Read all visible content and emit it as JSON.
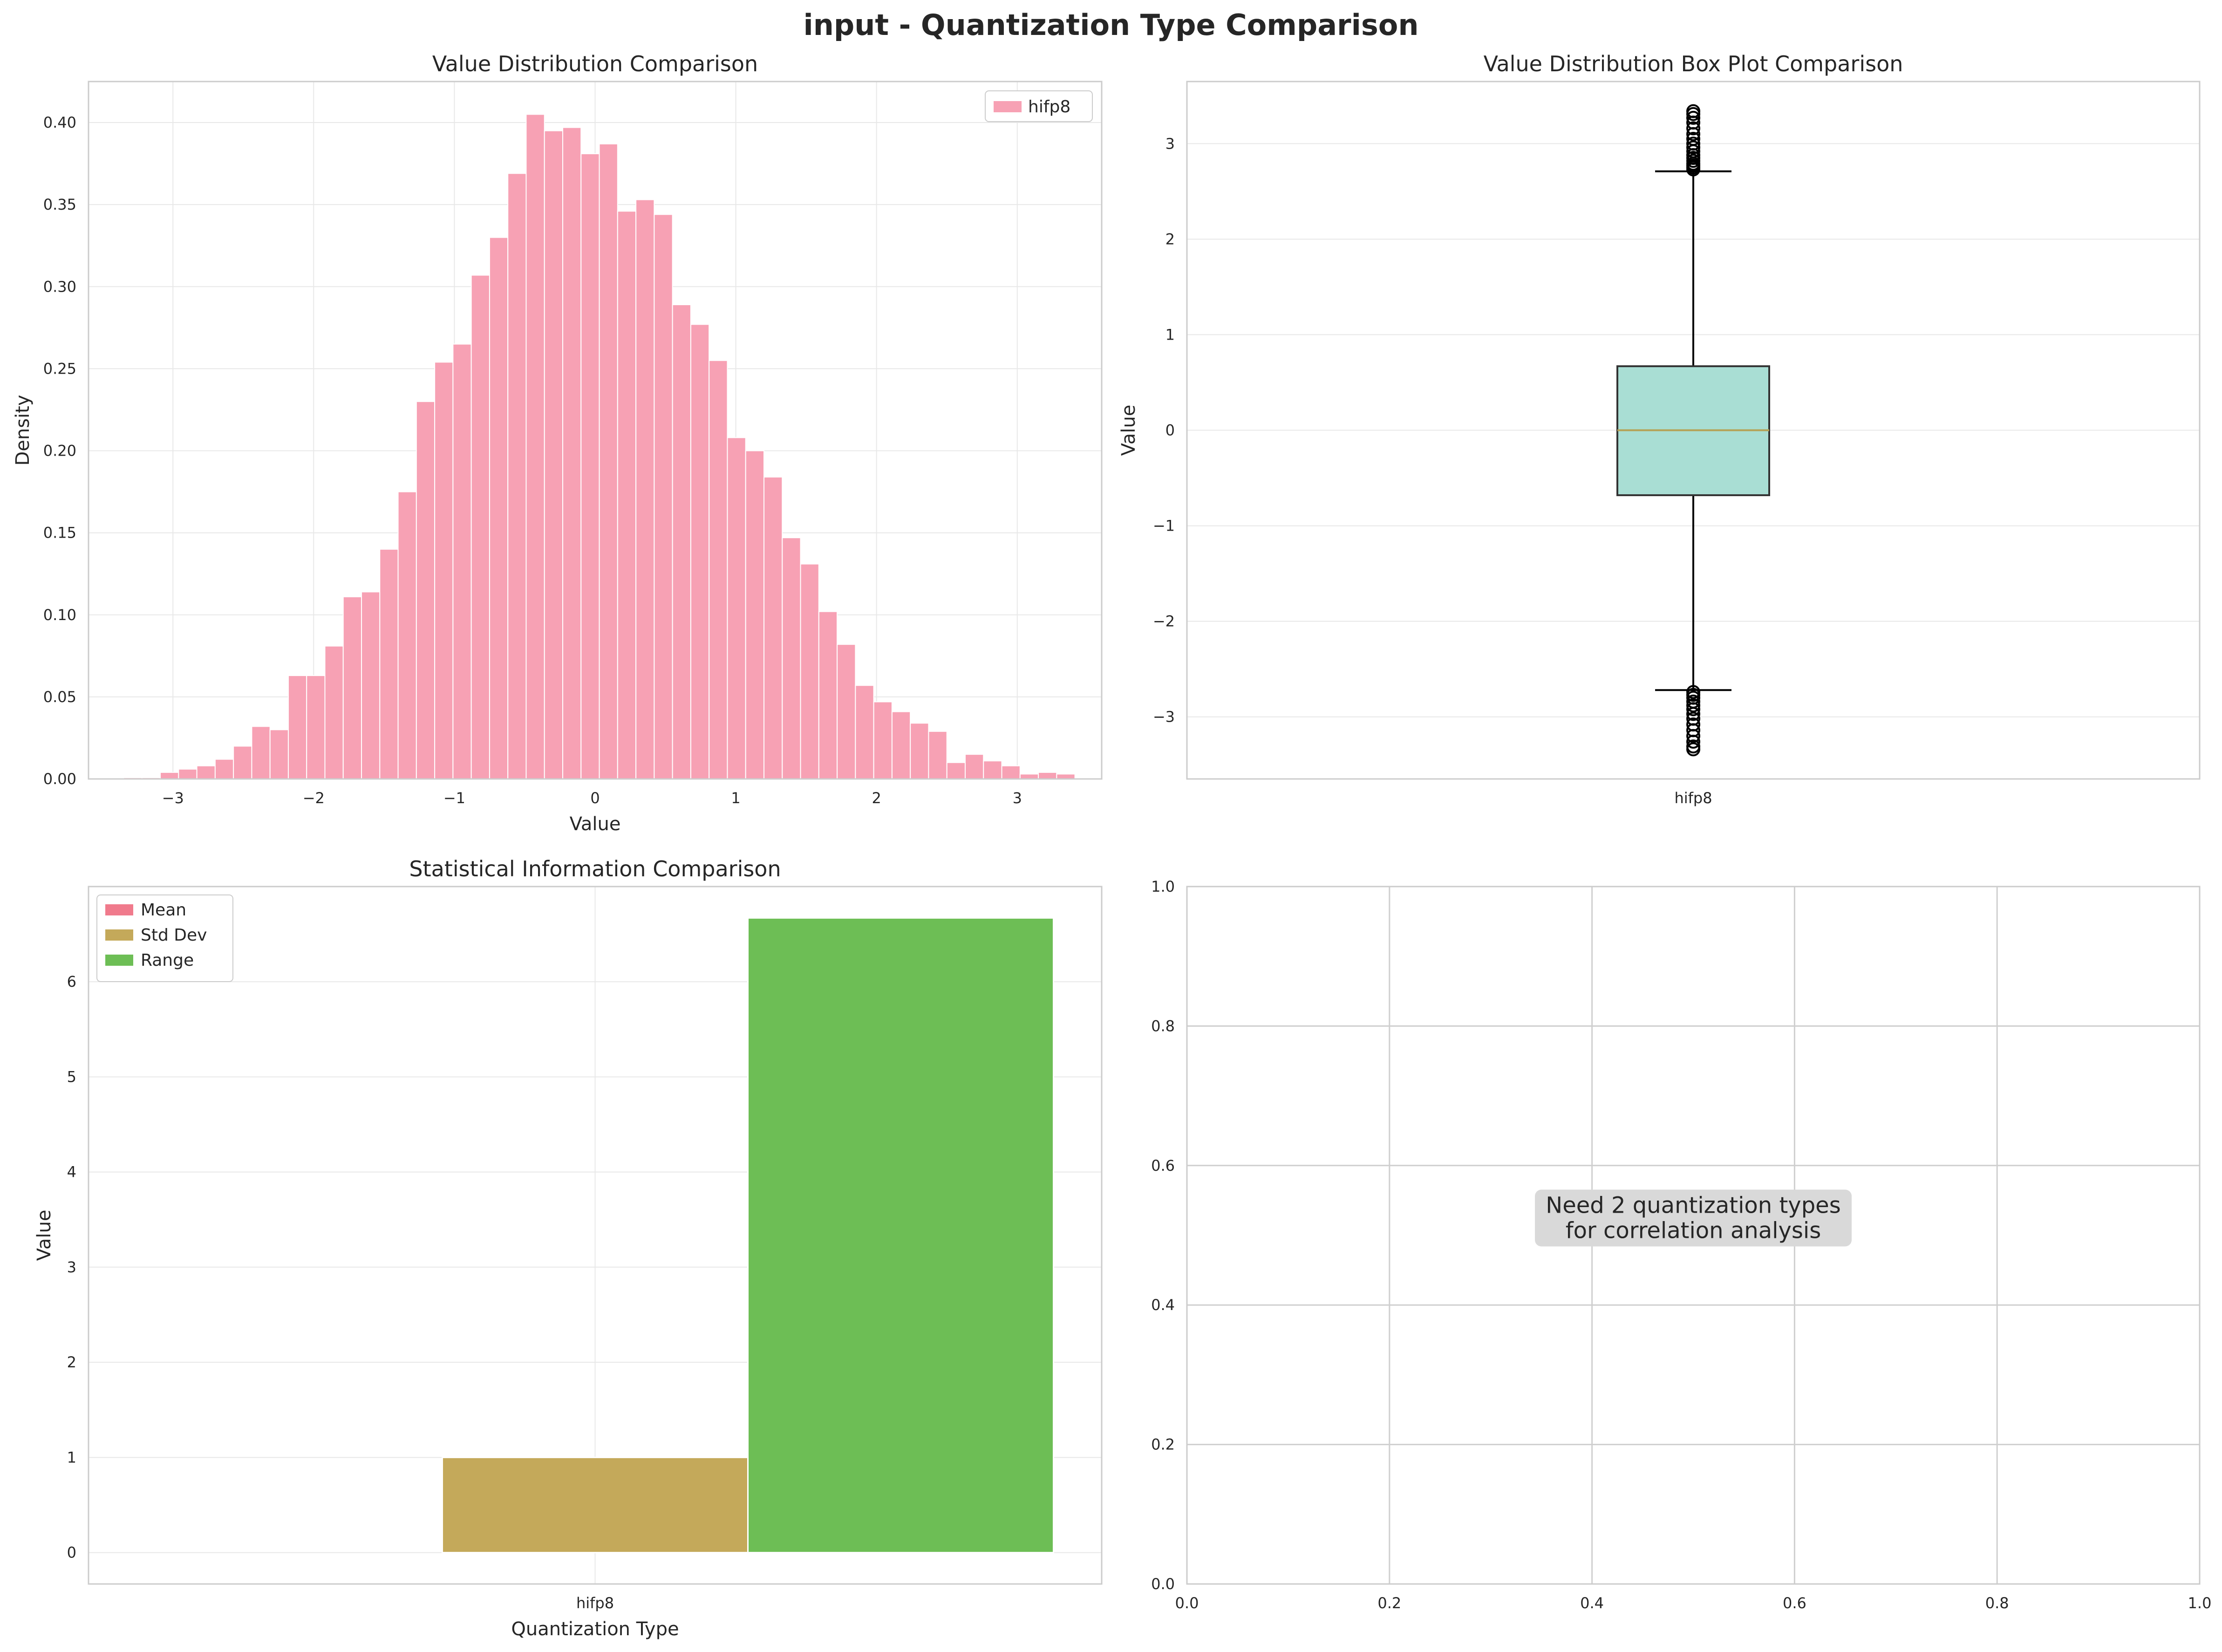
{
  "figure": {
    "suptitle": "input - Quantization Type Comparison"
  },
  "colors": {
    "hist_bar": "#f7a1b4",
    "box_fill": "#a9ded4",
    "median": "#b5a155",
    "mean": "#f07a8c",
    "std": "#c4a95a",
    "range": "#6dbe55",
    "grid": "#e8e8e8",
    "note_bg": "#d9d9d9"
  },
  "chart_data": [
    {
      "id": "hist",
      "type": "bar",
      "title": "Value Distribution Comparison",
      "xlabel": "Value",
      "ylabel": "Density",
      "xlim": [
        -3.6,
        3.6
      ],
      "ylim": [
        0,
        0.425
      ],
      "xticks": [
        -3,
        -2,
        -1,
        0,
        1,
        2,
        3
      ],
      "xtick_labels": [
        "−3",
        "−2",
        "−1",
        "0",
        "1",
        "2",
        "3"
      ],
      "yticks": [
        0.0,
        0.05,
        0.1,
        0.15,
        0.2,
        0.25,
        0.3,
        0.35,
        0.4
      ],
      "ytick_labels": [
        "0.00",
        "0.05",
        "0.10",
        "0.15",
        "0.20",
        "0.25",
        "0.30",
        "0.35",
        "0.40"
      ],
      "grid": true,
      "legend": "top-right",
      "series": [
        {
          "name": "hifp8",
          "bin_start": -3.35,
          "bin_width": 0.13,
          "values": [
            0.0008,
            0.0008,
            0.004,
            0.006,
            0.008,
            0.012,
            0.02,
            0.032,
            0.03,
            0.063,
            0.063,
            0.081,
            0.111,
            0.114,
            0.14,
            0.175,
            0.23,
            0.254,
            0.265,
            0.307,
            0.33,
            0.369,
            0.405,
            0.395,
            0.397,
            0.381,
            0.387,
            0.346,
            0.353,
            0.344,
            0.289,
            0.277,
            0.255,
            0.208,
            0.2,
            0.184,
            0.147,
            0.131,
            0.102,
            0.082,
            0.057,
            0.047,
            0.041,
            0.034,
            0.029,
            0.01,
            0.015,
            0.011,
            0.008,
            0.003,
            0.004,
            0.003
          ]
        }
      ]
    },
    {
      "id": "box",
      "type": "box",
      "title": "Value Distribution Box Plot Comparison",
      "xlabel": "",
      "ylabel": "Value",
      "ylim": [
        -3.65,
        3.65
      ],
      "yticks": [
        -3,
        -2,
        -1,
        0,
        1,
        2,
        3
      ],
      "ytick_labels": [
        "−3",
        "−2",
        "−1",
        "0",
        "1",
        "2",
        "3"
      ],
      "grid": true,
      "categories": [
        "hifp8"
      ],
      "stats": {
        "q1": -0.68,
        "median": 0.0,
        "q3": 0.67,
        "whisker_low": -2.72,
        "whisker_high": 2.71,
        "outliers_high": [
          2.73,
          2.75,
          2.77,
          2.79,
          2.82,
          2.85,
          2.88,
          2.92,
          2.96,
          3.0,
          3.05,
          3.1,
          3.16,
          3.22,
          3.27,
          3.31,
          3.34
        ],
        "outliers_low": [
          -2.74,
          -2.77,
          -2.8,
          -2.84,
          -2.88,
          -2.92,
          -2.97,
          -3.02,
          -3.08,
          -3.14,
          -3.2,
          -3.26,
          -3.31,
          -3.34
        ]
      }
    },
    {
      "id": "stats",
      "type": "bar",
      "title": "Statistical Information Comparison",
      "xlabel": "Quantization Type",
      "ylabel": "Value",
      "ylim": [
        -0.33,
        7.0
      ],
      "yticks": [
        0,
        1,
        2,
        3,
        4,
        5,
        6
      ],
      "ytick_labels": [
        "0",
        "1",
        "2",
        "3",
        "4",
        "5",
        "6"
      ],
      "grid": true,
      "legend": "top-left",
      "categories": [
        "hifp8"
      ],
      "series": [
        {
          "name": "Mean",
          "values": [
            0.0
          ]
        },
        {
          "name": "Std Dev",
          "values": [
            1.0
          ]
        },
        {
          "name": "Range",
          "values": [
            6.67
          ]
        }
      ]
    },
    {
      "id": "corr",
      "type": "scatter",
      "title": "",
      "xlabel": "",
      "ylabel": "",
      "xlim": [
        0,
        1
      ],
      "ylim": [
        0,
        1
      ],
      "xticks": [
        0.0,
        0.2,
        0.4,
        0.6,
        0.8,
        1.0
      ],
      "xtick_labels": [
        "0.0",
        "0.2",
        "0.4",
        "0.6",
        "0.8",
        "1.0"
      ],
      "yticks": [
        0.0,
        0.2,
        0.4,
        0.6,
        0.8,
        1.0
      ],
      "ytick_labels": [
        "0.0",
        "0.2",
        "0.4",
        "0.6",
        "0.8",
        "1.0"
      ],
      "grid": true,
      "annotation_lines": [
        "Need 2 quantization types",
        "for correlation analysis"
      ]
    }
  ]
}
